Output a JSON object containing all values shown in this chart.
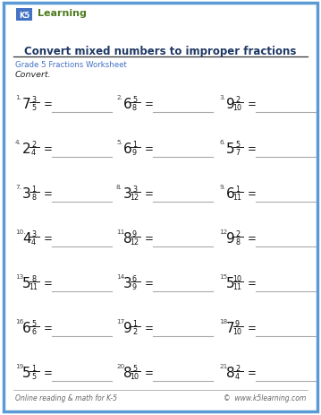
{
  "title": "Convert mixed numbers to improper fractions",
  "subtitle": "Grade 5 Fractions Worksheet",
  "instruction": "Convert.",
  "border_color": "#5b9bd5",
  "title_color": "#1f3864",
  "subtitle_color": "#4472c4",
  "footer_left": "Online reading & math for K-5",
  "footer_right": "©  www.k5learning.com",
  "problems": [
    {
      "num": 1,
      "whole": "7",
      "numer": "3",
      "denom": "5"
    },
    {
      "num": 2,
      "whole": "6",
      "numer": "5",
      "denom": "8"
    },
    {
      "num": 3,
      "whole": "9",
      "numer": "2",
      "denom": "10"
    },
    {
      "num": 4,
      "whole": "2",
      "numer": "2",
      "denom": "4"
    },
    {
      "num": 5,
      "whole": "6",
      "numer": "1",
      "denom": "9"
    },
    {
      "num": 6,
      "whole": "5",
      "numer": "5",
      "denom": "7"
    },
    {
      "num": 7,
      "whole": "3",
      "numer": "1",
      "denom": "8"
    },
    {
      "num": 8,
      "whole": "3",
      "numer": "3",
      "denom": "12"
    },
    {
      "num": 9,
      "whole": "6",
      "numer": "1",
      "denom": "11"
    },
    {
      "num": 10,
      "whole": "4",
      "numer": "3",
      "denom": "4"
    },
    {
      "num": 11,
      "whole": "8",
      "numer": "9",
      "denom": "12"
    },
    {
      "num": 12,
      "whole": "9",
      "numer": "2",
      "denom": "8"
    },
    {
      "num": 13,
      "whole": "5",
      "numer": "8",
      "denom": "11"
    },
    {
      "num": 14,
      "whole": "3",
      "numer": "6",
      "denom": "9"
    },
    {
      "num": 15,
      "whole": "5",
      "numer": "10",
      "denom": "11"
    },
    {
      "num": 16,
      "whole": "6",
      "numer": "5",
      "denom": "6"
    },
    {
      "num": 17,
      "whole": "9",
      "numer": "1",
      "denom": "2"
    },
    {
      "num": 18,
      "whole": "7",
      "numer": "9",
      "denom": "10"
    },
    {
      "num": 19,
      "whole": "5",
      "numer": "1",
      "denom": "5"
    },
    {
      "num": 20,
      "whole": "8",
      "numer": "5",
      "denom": "10"
    },
    {
      "num": 21,
      "whole": "8",
      "numer": "2",
      "denom": "4"
    }
  ],
  "bg_color": "#ffffff"
}
